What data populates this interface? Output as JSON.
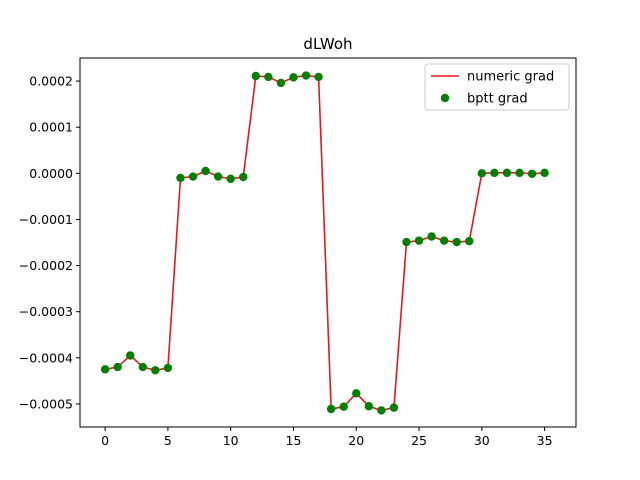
{
  "chart_data": {
    "type": "line",
    "title": "dLWoh",
    "xlabel": "",
    "ylabel": "",
    "xlim": [
      -2,
      37.5
    ],
    "ylim": [
      -0.00055,
      0.00025
    ],
    "xticks": [
      0,
      5,
      10,
      15,
      20,
      25,
      30,
      35
    ],
    "xtick_labels": [
      "0",
      "5",
      "10",
      "15",
      "20",
      "25",
      "30",
      "35"
    ],
    "yticks": [
      -0.0005,
      -0.0004,
      -0.0003,
      -0.0002,
      -0.0001,
      0.0,
      0.0001,
      0.0002
    ],
    "ytick_labels": [
      "−0.0005",
      "−0.0004",
      "−0.0003",
      "−0.0002",
      "−0.0001",
      "0.0000",
      "0.0001",
      "0.0002"
    ],
    "grid": false,
    "legend_position": "top-right",
    "x": [
      0,
      1,
      2,
      3,
      4,
      5,
      6,
      7,
      8,
      9,
      10,
      11,
      12,
      13,
      14,
      15,
      16,
      17,
      18,
      19,
      20,
      21,
      22,
      23,
      24,
      25,
      26,
      27,
      28,
      29,
      30,
      31,
      32,
      33,
      34,
      35
    ],
    "series": [
      {
        "name": "numeric grad",
        "style": "line",
        "color": "#e31a1c",
        "values": [
          -0.000425,
          -0.00042,
          -0.000395,
          -0.00042,
          -0.000427,
          -0.000422,
          -1e-05,
          -7e-06,
          5e-06,
          -7e-06,
          -1.2e-05,
          -8e-06,
          0.000211,
          0.000209,
          0.000196,
          0.000208,
          0.000212,
          0.000209,
          -0.000511,
          -0.000506,
          -0.000477,
          -0.000505,
          -0.000514,
          -0.000508,
          -0.000149,
          -0.000146,
          -0.000137,
          -0.000146,
          -0.000149,
          -0.000147,
          0.0,
          1e-06,
          1e-06,
          1e-06,
          -1e-06,
          1e-06
        ]
      },
      {
        "name": "bptt grad",
        "style": "scatter",
        "color": "#008000",
        "values": [
          -0.000425,
          -0.00042,
          -0.000395,
          -0.00042,
          -0.000427,
          -0.000422,
          -1e-05,
          -7e-06,
          5e-06,
          -7e-06,
          -1.2e-05,
          -8e-06,
          0.000211,
          0.000209,
          0.000196,
          0.000208,
          0.000212,
          0.000209,
          -0.000511,
          -0.000506,
          -0.000477,
          -0.000505,
          -0.000514,
          -0.000508,
          -0.000149,
          -0.000146,
          -0.000137,
          -0.000146,
          -0.000149,
          -0.000147,
          0.0,
          1e-06,
          1e-06,
          1e-06,
          -1e-06,
          1e-06
        ]
      }
    ]
  }
}
